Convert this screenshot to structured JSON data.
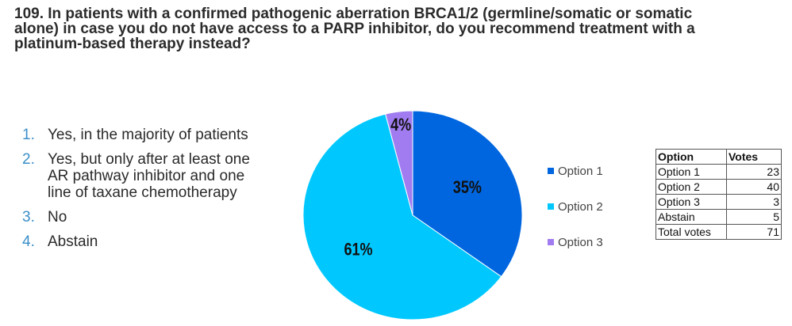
{
  "question": {
    "lines": [
      "109. In patients with a confirmed pathogenic aberration BRCA1/2 (germline/somatic or somatic",
      "alone) in case you do not have access to a PARP inhibitor, do you recommend treatment with a",
      "platinum-based therapy instead?"
    ]
  },
  "answers": [
    {
      "num": "1.",
      "lines": [
        "Yes, in the majority of patients"
      ]
    },
    {
      "num": "2.",
      "lines": [
        "Yes, but only after at least one",
        "AR pathway inhibitor and one",
        "line of taxane chemotherapy"
      ]
    },
    {
      "num": "3.",
      "lines": [
        "No"
      ]
    },
    {
      "num": "4.",
      "lines": [
        "Abstain"
      ]
    }
  ],
  "chart_data": {
    "type": "pie",
    "start_angle_deg": 0,
    "direction": "clockwise",
    "slices": [
      {
        "name": "Option 1",
        "label": "35%",
        "value": 35,
        "color": "#0066e0"
      },
      {
        "name": "Option 2",
        "label": "61%",
        "value": 61,
        "color": "#00c8ff"
      },
      {
        "name": "Option 3",
        "label": "4%",
        "value": 4,
        "color": "#a07cf0"
      }
    ],
    "legend_placement": "right"
  },
  "votes_table": {
    "headers": [
      "Option",
      "Votes"
    ],
    "rows": [
      [
        "Option 1",
        "23"
      ],
      [
        "Option 2",
        "40"
      ],
      [
        "Option 3",
        "3"
      ],
      [
        "Abstain",
        "5"
      ],
      [
        "Total votes",
        "71"
      ]
    ]
  }
}
